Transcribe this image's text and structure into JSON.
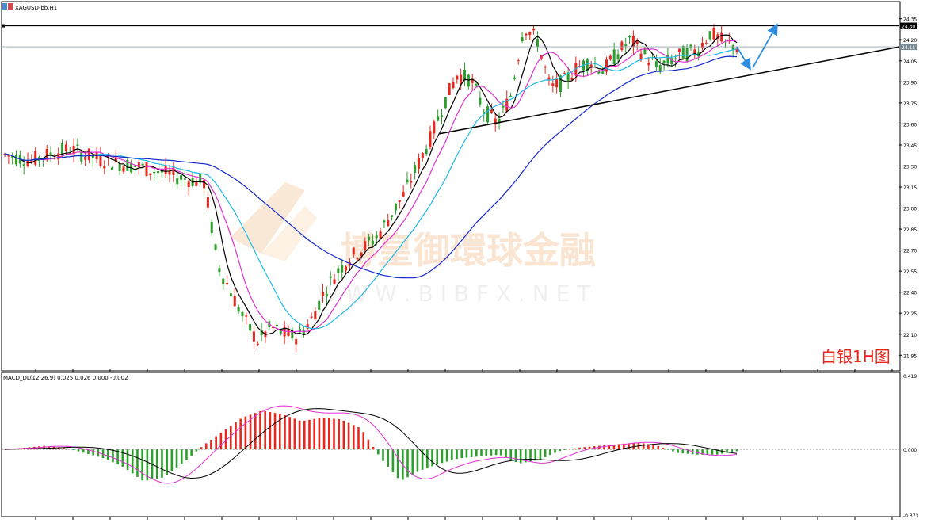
{
  "window": {
    "title": "XAGUSD-bb,H1"
  },
  "watermark": {
    "text_cn": "博皇御環球金融",
    "url": "W W W . B I B F X . N E T"
  },
  "annotation": {
    "caption": "白银1H图"
  },
  "colors": {
    "bull": "#e8261c",
    "bear": "#2aa02a",
    "ma_fast": "#000000",
    "ma_mid": "#e030d0",
    "ma_slow": "#20b8e8",
    "ma_long": "#1428c8",
    "trendline": "#000000",
    "resistance": "#000000",
    "arrow": "#2f8de0",
    "caption": "#e8261c"
  },
  "chart_data": [
    {
      "type": "candlestick",
      "title": "XAGUSD-bb,H1",
      "ylim": [
        21.85,
        24.45
      ],
      "yticks": [
        "24.35",
        "24.20",
        "24.05",
        "23.90",
        "23.75",
        "23.60",
        "23.45",
        "23.30",
        "23.15",
        "23.00",
        "22.85",
        "22.70",
        "22.55",
        "22.40",
        "22.25",
        "22.10",
        "21.95"
      ],
      "price_labels": {
        "resistance": "24.30",
        "current": "24.15"
      },
      "resistance_level": 24.3,
      "current_price": 24.15,
      "series_note": "approximate hourly close path",
      "close_path": [
        23.38,
        23.36,
        23.34,
        23.37,
        23.4,
        23.42,
        23.38,
        23.35,
        23.33,
        23.31,
        23.3,
        23.27,
        23.25,
        23.22,
        23.2,
        23.18,
        22.6,
        22.4,
        22.2,
        22.05,
        22.15,
        22.1,
        22.08,
        22.2,
        22.4,
        22.55,
        22.65,
        22.72,
        22.8,
        22.95,
        23.1,
        23.3,
        23.5,
        23.75,
        23.95,
        23.92,
        23.7,
        23.6,
        23.8,
        24.3,
        24.2,
        23.85,
        23.9,
        24.0,
        24.05,
        23.98,
        24.1,
        24.2,
        24.1,
        24.0,
        24.05,
        24.1,
        24.12,
        24.25,
        24.18,
        24.15
      ],
      "trendline": {
        "from": 23.53,
        "to": 24.15
      },
      "forecast_arrows": [
        {
          "from": 24.15,
          "to": 24.0
        },
        {
          "from": 24.0,
          "to": 24.3
        }
      ]
    },
    {
      "type": "macd",
      "title": "MACD_DL(12,26,9) 0.025 0.026 0.000 -0.002",
      "ylim": [
        -0.373,
        0.419
      ],
      "yticks": [
        "0.419",
        "0.000",
        "-0.373"
      ],
      "histogram_approx": [
        0.0,
        0.01,
        0.02,
        0.01,
        -0.02,
        -0.05,
        -0.1,
        -0.18,
        -0.16,
        -0.08,
        0.02,
        0.1,
        0.18,
        0.22,
        0.2,
        0.16,
        0.18,
        0.17,
        0.12,
        -0.05,
        -0.18,
        -0.12,
        -0.08,
        -0.05,
        -0.04,
        -0.03,
        -0.08,
        -0.06,
        -0.01,
        0.01,
        0.02,
        0.03,
        0.04,
        0.02,
        -0.02,
        -0.03,
        -0.03,
        -0.01
      ]
    }
  ]
}
